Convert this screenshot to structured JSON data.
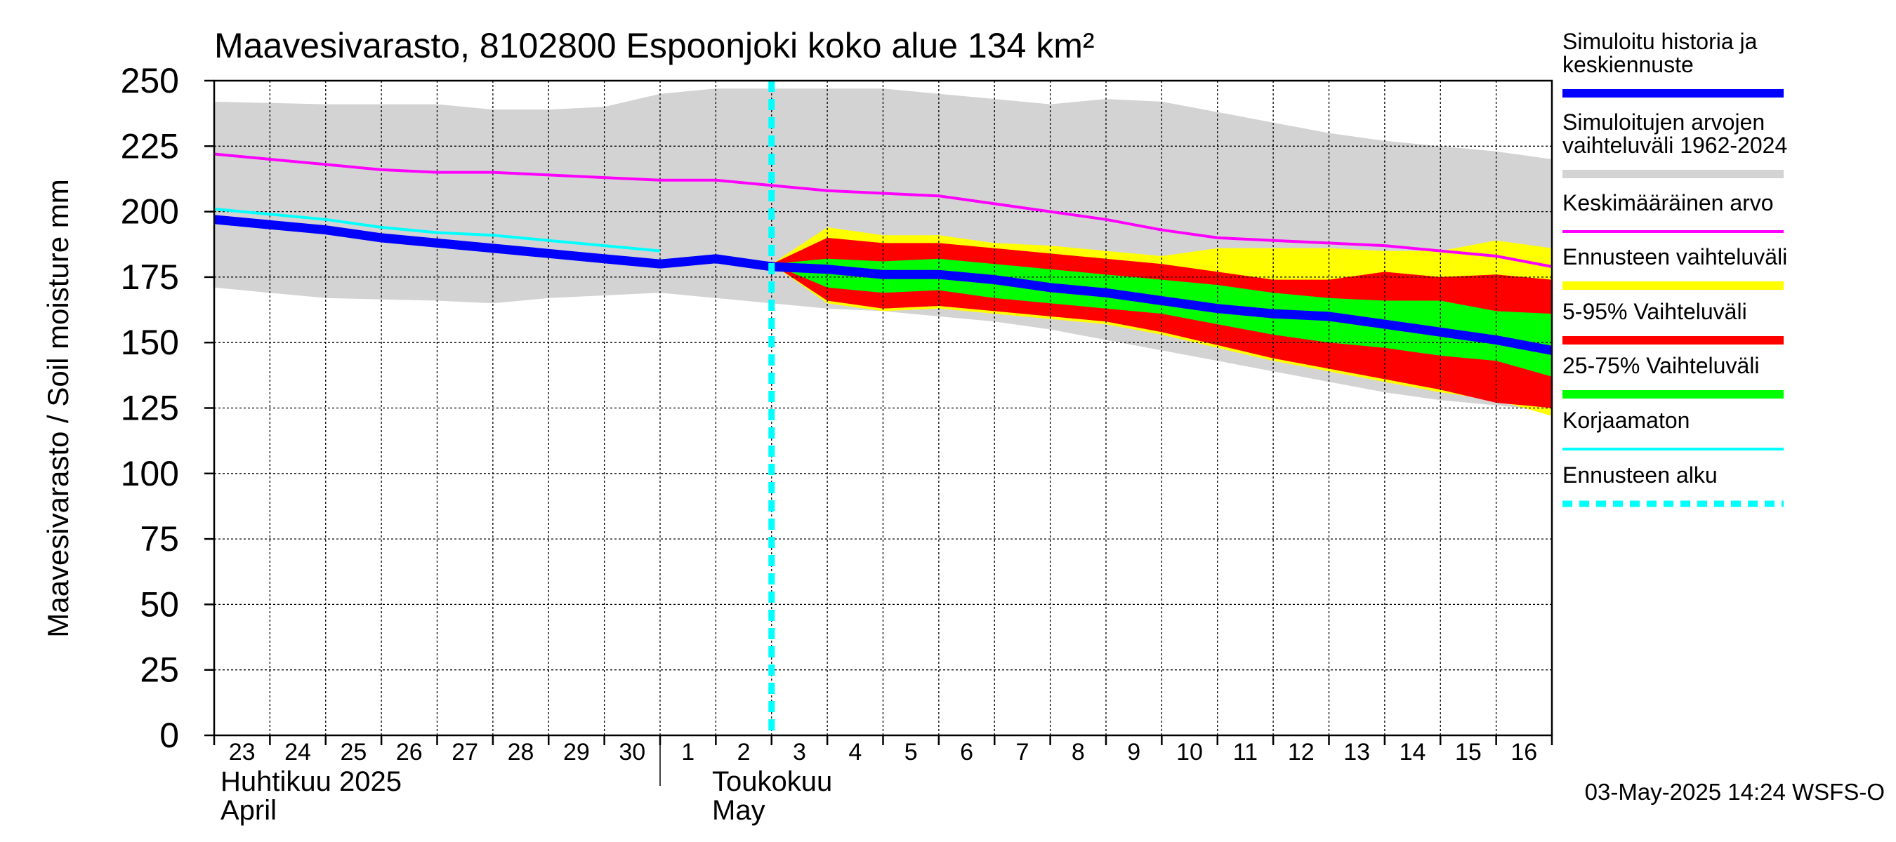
{
  "chart_data": {
    "type": "area",
    "title": "Maavesivarasto, 8102800 Espoonjoki koko alue 134 km²",
    "ylabel": "Maavesivarasto / Soil moisture   mm",
    "ylim": [
      0,
      250
    ],
    "yticks": [
      0,
      25,
      50,
      75,
      100,
      125,
      150,
      175,
      200,
      225,
      250
    ],
    "xlim": [
      0,
      24
    ],
    "grid": true,
    "x_day_labels": [
      "23",
      "24",
      "25",
      "26",
      "27",
      "28",
      "29",
      "30",
      "1",
      "2",
      "3",
      "4",
      "5",
      "6",
      "7",
      "8",
      "9",
      "10",
      "11",
      "12",
      "13",
      "14",
      "15",
      "16"
    ],
    "month_labels": [
      {
        "fi": "Huhtikuu  2025",
        "en": "April",
        "start_day": 0
      },
      {
        "fi": "Toukokuu",
        "en": "May",
        "start_day": 8
      }
    ],
    "forecast_start": 10,
    "footer": "03-May-2025 14:24 WSFS-O",
    "legend_position": "right",
    "legend": [
      {
        "key": "hist",
        "label": "Simuloitu historia ja keskiennuste",
        "color": "#0000ff",
        "style": "thick"
      },
      {
        "key": "range",
        "label": "Simuloitujen arvojen vaihteluväli 1962-2024",
        "color": "#d3d3d3",
        "style": "thick"
      },
      {
        "key": "mean",
        "label": "Keskimääräinen arvo",
        "color": "#ff00ff",
        "style": "thin"
      },
      {
        "key": "fc_range",
        "label": "Ennusteen vaihteluväli",
        "color": "#ffff00",
        "style": "thick"
      },
      {
        "key": "p5_95",
        "label": "5-95% Vaihteluväli",
        "color": "#ff0000",
        "style": "thick"
      },
      {
        "key": "p25_75",
        "label": "25-75% Vaihteluväli",
        "color": "#00ff00",
        "style": "thick"
      },
      {
        "key": "uncorrected",
        "label": "Korjaamaton",
        "color": "#00ffff",
        "style": "thin"
      },
      {
        "key": "fc_start",
        "label": "Ennusteen alku",
        "color": "#00ffff",
        "style": "dashed"
      }
    ],
    "series": {
      "historical_range": {
        "x": [
          0,
          2,
          4,
          5,
          6,
          7,
          8,
          9,
          10,
          11,
          12,
          13,
          14,
          15,
          16,
          17,
          18,
          19,
          20,
          21,
          22,
          23,
          24
        ],
        "upper": [
          242,
          241,
          241,
          239,
          239,
          240,
          245,
          247,
          247,
          247,
          247,
          245,
          243,
          241,
          243,
          242,
          238,
          234,
          230,
          227,
          225,
          223,
          220
        ],
        "lower": [
          171,
          167,
          166,
          165,
          167,
          168,
          169,
          167,
          165,
          163,
          162,
          160,
          158,
          155,
          151,
          147,
          143,
          139,
          135,
          131,
          128,
          126,
          124
        ]
      },
      "mean": {
        "x": [
          0,
          1,
          2,
          3,
          4,
          5,
          6,
          7,
          8,
          9,
          10,
          11,
          12,
          13,
          14,
          15,
          16,
          17,
          18,
          19,
          20,
          21,
          22,
          23,
          24
        ],
        "values": [
          222,
          220,
          218,
          216,
          215,
          215,
          214,
          213,
          212,
          212,
          210,
          208,
          207,
          206,
          203,
          200,
          197,
          193,
          190,
          189,
          188,
          187,
          185,
          183,
          179
        ]
      },
      "uncorrected": {
        "x": [
          0,
          1,
          2,
          3,
          4,
          5,
          6,
          7,
          8
        ],
        "values": [
          201,
          199,
          197,
          194,
          192,
          191,
          189,
          187,
          185
        ]
      },
      "simulated_history_and_median": {
        "x": [
          0,
          1,
          2,
          3,
          4,
          5,
          6,
          7,
          8,
          9,
          10,
          11,
          12,
          13,
          14,
          15,
          16,
          17,
          18,
          19,
          20,
          21,
          22,
          23,
          24
        ],
        "values": [
          197,
          195,
          193,
          190,
          188,
          186,
          184,
          182,
          180,
          182,
          179,
          178,
          176,
          176,
          174,
          171,
          169,
          166,
          163,
          161,
          160,
          157,
          154,
          151,
          147
        ]
      },
      "forecast_range": {
        "x": [
          10,
          11,
          12,
          13,
          14,
          15,
          16,
          17,
          18,
          19,
          20,
          21,
          22,
          23,
          24
        ],
        "upper": [
          180,
          194,
          191,
          191,
          188,
          187,
          185,
          183,
          186,
          186,
          186,
          185,
          185,
          189,
          186
        ],
        "lower": [
          180,
          165,
          162,
          163,
          161,
          159,
          157,
          153,
          148,
          143,
          139,
          135,
          131,
          128,
          122
        ]
      },
      "p5_95": {
        "x": [
          10,
          11,
          12,
          13,
          14,
          15,
          16,
          17,
          18,
          19,
          20,
          21,
          22,
          23,
          24
        ],
        "upper": [
          180,
          190,
          188,
          188,
          186,
          184,
          182,
          180,
          177,
          174,
          174,
          177,
          175,
          176,
          174
        ],
        "lower": [
          180,
          166,
          163,
          164,
          162,
          160,
          158,
          154,
          149,
          144,
          140,
          136,
          132,
          127,
          125
        ]
      },
      "p25_75": {
        "x": [
          10,
          11,
          12,
          13,
          14,
          15,
          16,
          17,
          18,
          19,
          20,
          21,
          22,
          23,
          24
        ],
        "upper": [
          180,
          182,
          181,
          182,
          180,
          178,
          176,
          174,
          172,
          169,
          167,
          166,
          166,
          162,
          161
        ],
        "lower": [
          180,
          171,
          169,
          170,
          167,
          165,
          163,
          161,
          157,
          153,
          150,
          148,
          145,
          143,
          137
        ]
      }
    }
  }
}
